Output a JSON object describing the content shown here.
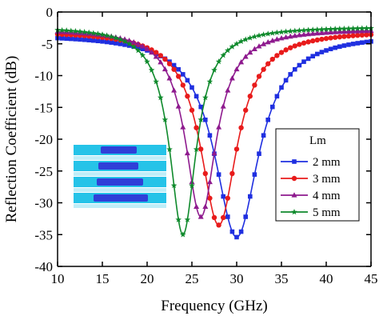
{
  "chart_data": {
    "type": "line",
    "xlabel": "Frequency (GHz)",
    "ylabel": "Reflection Coefficient (dB)",
    "xlim": [
      10,
      45
    ],
    "ylim": [
      -40,
      0
    ],
    "xticks": [
      10,
      15,
      20,
      25,
      30,
      35,
      40,
      45
    ],
    "yticks": [
      0,
      -5,
      -10,
      -15,
      -20,
      -25,
      -30,
      -35,
      -40
    ],
    "grid": false,
    "legend": {
      "title": "Lm",
      "placement": "center-right"
    },
    "series": [
      {
        "name": "2 mm",
        "color": "#1f2fe0",
        "marker": "square",
        "resonance_ghz": 30.0,
        "min_db": -35.4,
        "baseline_db": -3.4,
        "halfwidth_ghz": 3.0
      },
      {
        "name": "3 mm",
        "color": "#e81b1b",
        "marker": "circle",
        "resonance_ghz": 28.0,
        "min_db": -33.5,
        "baseline_db": -2.9,
        "halfwidth_ghz": 2.5
      },
      {
        "name": "4 mm",
        "color": "#8e1a8e",
        "marker": "triangle",
        "resonance_ghz": 26.0,
        "min_db": -32.2,
        "baseline_db": -2.6,
        "halfwidth_ghz": 2.1
      },
      {
        "name": "5 mm",
        "color": "#0f8a2c",
        "marker": "star",
        "resonance_ghz": 24.0,
        "min_db": -35.0,
        "baseline_db": -2.3,
        "halfwidth_ghz": 1.8
      }
    ]
  },
  "inset": {
    "icon": "dipole-array-structure-icon",
    "strip_color": "#25c3e8",
    "bar_color": "#2f3fd8"
  }
}
